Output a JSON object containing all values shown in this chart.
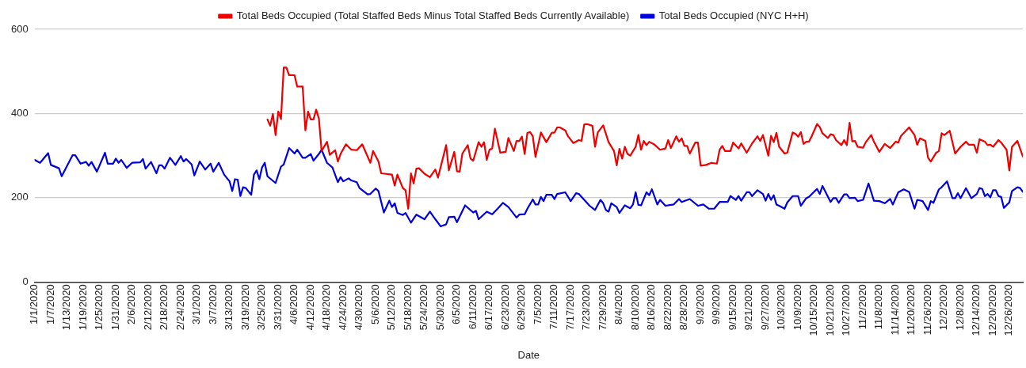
{
  "chart_data": {
    "type": "line",
    "xlabel": "Date",
    "legend": "top",
    "grid": "y",
    "marker": "none",
    "line_style": "solid",
    "xlim": [
      "2020-01-01",
      "2020-12-31"
    ],
    "ylim": [
      0,
      600
    ],
    "yticks": [
      0,
      200,
      400,
      600
    ],
    "xticks": [
      {
        "value": "2020-01-01",
        "label": "1/1/2020"
      },
      {
        "value": "2020-01-07",
        "label": "1/7/2020"
      },
      {
        "value": "2020-01-13",
        "label": "1/13/2020"
      },
      {
        "value": "2020-01-19",
        "label": "1/19/2020"
      },
      {
        "value": "2020-01-25",
        "label": "1/25/2020"
      },
      {
        "value": "2020-01-31",
        "label": "1/31/2020"
      },
      {
        "value": "2020-02-06",
        "label": "2/6/2020"
      },
      {
        "value": "2020-02-12",
        "label": "2/12/2020"
      },
      {
        "value": "2020-02-18",
        "label": "2/18/2020"
      },
      {
        "value": "2020-02-24",
        "label": "2/24/2020"
      },
      {
        "value": "2020-03-01",
        "label": "3/1/2020"
      },
      {
        "value": "2020-03-07",
        "label": "3/7/2020"
      },
      {
        "value": "2020-03-13",
        "label": "3/13/2020"
      },
      {
        "value": "2020-03-19",
        "label": "3/19/2020"
      },
      {
        "value": "2020-03-25",
        "label": "3/25/2020"
      },
      {
        "value": "2020-03-31",
        "label": "3/31/2020"
      },
      {
        "value": "2020-04-06",
        "label": "4/6/2020"
      },
      {
        "value": "2020-04-12",
        "label": "4/12/2020"
      },
      {
        "value": "2020-04-18",
        "label": "4/18/2020"
      },
      {
        "value": "2020-04-24",
        "label": "4/24/2020"
      },
      {
        "value": "2020-04-30",
        "label": "4/30/2020"
      },
      {
        "value": "2020-05-06",
        "label": "5/6/2020"
      },
      {
        "value": "2020-05-12",
        "label": "5/12/2020"
      },
      {
        "value": "2020-05-18",
        "label": "5/18/2020"
      },
      {
        "value": "2020-05-24",
        "label": "5/24/2020"
      },
      {
        "value": "2020-05-30",
        "label": "5/30/2020"
      },
      {
        "value": "2020-06-05",
        "label": "6/5/2020"
      },
      {
        "value": "2020-06-11",
        "label": "6/11/2020"
      },
      {
        "value": "2020-06-17",
        "label": "6/17/2020"
      },
      {
        "value": "2020-06-23",
        "label": "6/23/2020"
      },
      {
        "value": "2020-06-29",
        "label": "6/29/2020"
      },
      {
        "value": "2020-07-05",
        "label": "7/5/2020"
      },
      {
        "value": "2020-07-11",
        "label": "7/11/2020"
      },
      {
        "value": "2020-07-17",
        "label": "7/17/2020"
      },
      {
        "value": "2020-07-23",
        "label": "7/23/2020"
      },
      {
        "value": "2020-07-29",
        "label": "7/29/2020"
      },
      {
        "value": "2020-08-04",
        "label": "8/4/2020"
      },
      {
        "value": "2020-08-10",
        "label": "8/10/2020"
      },
      {
        "value": "2020-08-16",
        "label": "8/16/2020"
      },
      {
        "value": "2020-08-22",
        "label": "8/22/2020"
      },
      {
        "value": "2020-08-28",
        "label": "8/28/2020"
      },
      {
        "value": "2020-09-03",
        "label": "9/3/2020"
      },
      {
        "value": "2020-09-09",
        "label": "9/9/2020"
      },
      {
        "value": "2020-09-15",
        "label": "9/15/2020"
      },
      {
        "value": "2020-09-21",
        "label": "9/21/2020"
      },
      {
        "value": "2020-09-27",
        "label": "9/27/2020"
      },
      {
        "value": "2020-10-03",
        "label": "10/3/2020"
      },
      {
        "value": "2020-10-09",
        "label": "10/9/2020"
      },
      {
        "value": "2020-10-15",
        "label": "10/15/2020"
      },
      {
        "value": "2020-10-21",
        "label": "10/21/2020"
      },
      {
        "value": "2020-10-27",
        "label": "10/27/2020"
      },
      {
        "value": "2020-11-02",
        "label": "11/2/2020"
      },
      {
        "value": "2020-11-08",
        "label": "11/8/2020"
      },
      {
        "value": "2020-11-14",
        "label": "11/14/2020"
      },
      {
        "value": "2020-11-20",
        "label": "11/20/2020"
      },
      {
        "value": "2020-11-26",
        "label": "11/26/2020"
      },
      {
        "value": "2020-12-02",
        "label": "12/2/2020"
      },
      {
        "value": "2020-12-08",
        "label": "12/8/2020"
      },
      {
        "value": "2020-12-14",
        "label": "12/14/2020"
      },
      {
        "value": "2020-12-20",
        "label": "12/20/2020"
      },
      {
        "value": "2020-12-26",
        "label": "12/26/2020"
      }
    ],
    "series": [
      {
        "name": "Total Beds Occupied (Total Staffed Beds Minus Total Staffed Beds Currently Available)",
        "color": "#ee0000",
        "x": [
          "2020-03-27",
          "2020-03-28",
          "2020-03-29",
          "2020-03-30",
          "2020-03-31",
          "2020-04-01",
          "2020-04-02",
          "2020-04-03",
          "2020-04-04",
          "2020-04-06",
          "2020-04-07",
          "2020-04-09",
          "2020-04-10",
          "2020-04-11",
          "2020-04-12",
          "2020-04-13",
          "2020-04-14",
          "2020-04-15",
          "2020-04-16",
          "2020-04-18",
          "2020-04-19",
          "2020-04-21",
          "2020-04-22",
          "2020-04-23",
          "2020-04-25",
          "2020-04-27",
          "2020-04-29",
          "2020-05-01",
          "2020-05-04",
          "2020-05-05",
          "2020-05-07",
          "2020-05-08",
          "2020-05-12",
          "2020-05-13",
          "2020-05-14",
          "2020-05-16",
          "2020-05-17",
          "2020-05-18",
          "2020-05-19",
          "2020-05-20",
          "2020-05-21",
          "2020-05-22",
          "2020-05-24",
          "2020-05-26",
          "2020-05-28",
          "2020-05-29",
          "2020-06-01",
          "2020-06-02",
          "2020-06-04",
          "2020-06-05",
          "2020-06-06",
          "2020-06-07",
          "2020-06-09",
          "2020-06-10",
          "2020-06-11",
          "2020-06-13",
          "2020-06-14",
          "2020-06-15",
          "2020-06-16",
          "2020-06-17",
          "2020-06-18",
          "2020-06-19",
          "2020-06-21",
          "2020-06-23",
          "2020-06-24",
          "2020-06-26",
          "2020-06-27",
          "2020-06-28",
          "2020-06-29",
          "2020-06-30",
          "2020-07-01",
          "2020-07-02",
          "2020-07-03",
          "2020-07-04",
          "2020-07-06",
          "2020-07-08",
          "2020-07-10",
          "2020-07-11",
          "2020-07-12",
          "2020-07-13",
          "2020-07-15",
          "2020-07-16",
          "2020-07-18",
          "2020-07-20",
          "2020-07-21",
          "2020-07-22",
          "2020-07-23",
          "2020-07-25",
          "2020-07-26",
          "2020-07-27",
          "2020-07-29",
          "2020-07-31",
          "2020-08-02",
          "2020-08-03",
          "2020-08-04",
          "2020-08-05",
          "2020-08-06",
          "2020-08-07",
          "2020-08-08",
          "2020-08-10",
          "2020-08-11",
          "2020-08-12",
          "2020-08-13",
          "2020-08-14",
          "2020-08-15",
          "2020-08-17",
          "2020-08-19",
          "2020-08-21",
          "2020-08-22",
          "2020-08-23",
          "2020-08-25",
          "2020-08-26",
          "2020-08-27",
          "2020-08-28",
          "2020-08-29",
          "2020-08-30",
          "2020-09-01",
          "2020-09-02",
          "2020-09-03",
          "2020-09-05",
          "2020-09-07",
          "2020-09-09",
          "2020-09-10",
          "2020-09-11",
          "2020-09-12",
          "2020-09-14",
          "2020-09-15",
          "2020-09-17",
          "2020-09-18",
          "2020-09-20",
          "2020-09-22",
          "2020-09-24",
          "2020-09-25",
          "2020-09-26",
          "2020-09-28",
          "2020-09-29",
          "2020-09-30",
          "2020-10-01",
          "2020-10-02",
          "2020-10-04",
          "2020-10-05",
          "2020-10-07",
          "2020-10-08",
          "2020-10-09",
          "2020-10-10",
          "2020-10-11",
          "2020-10-12",
          "2020-10-13",
          "2020-10-14",
          "2020-10-16",
          "2020-10-17",
          "2020-10-18",
          "2020-10-20",
          "2020-10-21",
          "2020-10-22",
          "2020-10-23",
          "2020-10-25",
          "2020-10-26",
          "2020-10-27",
          "2020-10-28",
          "2020-10-29",
          "2020-10-30",
          "2020-10-31",
          "2020-11-02",
          "2020-11-03",
          "2020-11-05",
          "2020-11-06",
          "2020-11-08",
          "2020-11-10",
          "2020-11-12",
          "2020-11-14",
          "2020-11-15",
          "2020-11-16",
          "2020-11-19",
          "2020-11-21",
          "2020-11-22",
          "2020-11-23",
          "2020-11-25",
          "2020-11-26",
          "2020-11-27",
          "2020-11-29",
          "2020-11-30",
          "2020-12-01",
          "2020-12-02",
          "2020-12-04",
          "2020-12-06",
          "2020-12-08",
          "2020-12-10",
          "2020-12-11",
          "2020-12-13",
          "2020-12-14",
          "2020-12-15",
          "2020-12-17",
          "2020-12-18",
          "2020-12-19",
          "2020-12-20",
          "2020-12-22",
          "2020-12-23",
          "2020-12-25",
          "2020-12-26",
          "2020-12-27",
          "2020-12-29",
          "2020-12-31"
        ],
        "values": [
          386,
          371,
          399,
          349,
          405,
          387,
          509,
          509,
          491,
          491,
          464,
          464,
          360,
          405,
          386,
          386,
          409,
          388,
          311,
          333,
          302,
          313,
          286,
          304,
          327,
          314,
          313,
          327,
          283,
          311,
          286,
          258,
          255,
          229,
          255,
          223,
          218,
          174,
          258,
          234,
          269,
          270,
          257,
          249,
          267,
          248,
          325,
          265,
          309,
          263,
          262,
          305,
          325,
          293,
          288,
          332,
          321,
          332,
          290,
          314,
          317,
          364,
          307,
          309,
          342,
          311,
          335,
          335,
          345,
          304,
          354,
          356,
          346,
          297,
          355,
          332,
          354,
          355,
          367,
          367,
          360,
          346,
          330,
          337,
          335,
          374,
          375,
          371,
          321,
          355,
          372,
          332,
          311,
          277,
          316,
          293,
          321,
          304,
          300,
          321,
          349,
          314,
          335,
          325,
          333,
          326,
          314,
          317,
          337,
          318,
          346,
          333,
          341,
          323,
          323,
          305,
          331,
          331,
          276,
          278,
          283,
          281,
          314,
          323,
          311,
          311,
          331,
          317,
          329,
          307,
          329,
          346,
          335,
          349,
          300,
          347,
          332,
          354,
          321,
          305,
          307,
          355,
          352,
          345,
          356,
          328,
          333,
          333,
          346,
          375,
          368,
          353,
          342,
          351,
          349,
          337,
          325,
          337,
          325,
          378,
          334,
          335,
          321,
          319,
          332,
          349,
          333,
          309,
          328,
          318,
          333,
          331,
          347,
          367,
          349,
          326,
          341,
          335,
          295,
          286,
          307,
          311,
          353,
          349,
          359,
          305,
          321,
          333,
          326,
          326,
          307,
          339,
          333,
          325,
          326,
          321,
          337,
          331,
          314,
          265,
          321,
          335,
          298
        ]
      },
      {
        "name": "Total Beds Occupied (NYC H+H)",
        "color": "#0000dd",
        "x": [
          "2020-01-01",
          "2020-01-03",
          "2020-01-06",
          "2020-01-07",
          "2020-01-10",
          "2020-01-11",
          "2020-01-15",
          "2020-01-16",
          "2020-01-18",
          "2020-01-20",
          "2020-01-21",
          "2020-01-22",
          "2020-01-24",
          "2020-01-27",
          "2020-01-28",
          "2020-01-30",
          "2020-01-31",
          "2020-02-01",
          "2020-02-02",
          "2020-02-04",
          "2020-02-06",
          "2020-02-09",
          "2020-02-10",
          "2020-02-11",
          "2020-02-13",
          "2020-02-15",
          "2020-02-16",
          "2020-02-17",
          "2020-02-18",
          "2020-02-20",
          "2020-02-22",
          "2020-02-24",
          "2020-02-25",
          "2020-02-26",
          "2020-02-28",
          "2020-02-29",
          "2020-03-02",
          "2020-03-04",
          "2020-03-06",
          "2020-03-07",
          "2020-03-09",
          "2020-03-11",
          "2020-03-13",
          "2020-03-14",
          "2020-03-15",
          "2020-03-16",
          "2020-03-17",
          "2020-03-18",
          "2020-03-19",
          "2020-03-21",
          "2020-03-22",
          "2020-03-23",
          "2020-03-24",
          "2020-03-25",
          "2020-03-26",
          "2020-03-27",
          "2020-03-30",
          "2020-04-01",
          "2020-04-02",
          "2020-04-04",
          "2020-04-06",
          "2020-04-07",
          "2020-04-09",
          "2020-04-10",
          "2020-04-12",
          "2020-04-13",
          "2020-04-15",
          "2020-04-16",
          "2020-04-18",
          "2020-04-20",
          "2020-04-22",
          "2020-04-23",
          "2020-04-24",
          "2020-04-26",
          "2020-04-27",
          "2020-04-29",
          "2020-04-30",
          "2020-05-03",
          "2020-05-04",
          "2020-05-06",
          "2020-05-07",
          "2020-05-09",
          "2020-05-11",
          "2020-05-12",
          "2020-05-13",
          "2020-05-14",
          "2020-05-16",
          "2020-05-17",
          "2020-05-19",
          "2020-05-21",
          "2020-05-24",
          "2020-05-26",
          "2020-05-28",
          "2020-05-30",
          "2020-06-01",
          "2020-06-02",
          "2020-06-04",
          "2020-06-05",
          "2020-06-08",
          "2020-06-11",
          "2020-06-12",
          "2020-06-13",
          "2020-06-16",
          "2020-06-18",
          "2020-06-20",
          "2020-06-22",
          "2020-06-24",
          "2020-06-27",
          "2020-06-28",
          "2020-06-30",
          "2020-07-01",
          "2020-07-03",
          "2020-07-04",
          "2020-07-05",
          "2020-07-06",
          "2020-07-07",
          "2020-07-08",
          "2020-07-10",
          "2020-07-11",
          "2020-07-12",
          "2020-07-15",
          "2020-07-17",
          "2020-07-19",
          "2020-07-20",
          "2020-07-22",
          "2020-07-24",
          "2020-07-26",
          "2020-07-28",
          "2020-07-29",
          "2020-07-30",
          "2020-07-31",
          "2020-08-01",
          "2020-08-03",
          "2020-08-04",
          "2020-08-06",
          "2020-08-08",
          "2020-08-09",
          "2020-08-10",
          "2020-08-11",
          "2020-08-12",
          "2020-08-14",
          "2020-08-15",
          "2020-08-16",
          "2020-08-18",
          "2020-08-19",
          "2020-08-21",
          "2020-08-24",
          "2020-08-26",
          "2020-08-27",
          "2020-08-30",
          "2020-09-02",
          "2020-09-04",
          "2020-09-06",
          "2020-09-08",
          "2020-09-10",
          "2020-09-13",
          "2020-09-14",
          "2020-09-16",
          "2020-09-17",
          "2020-09-18",
          "2020-09-20",
          "2020-09-21",
          "2020-09-22",
          "2020-09-24",
          "2020-09-26",
          "2020-09-27",
          "2020-09-28",
          "2020-09-29",
          "2020-09-30",
          "2020-10-01",
          "2020-10-02",
          "2020-10-04",
          "2020-10-05",
          "2020-10-07",
          "2020-10-09",
          "2020-10-10",
          "2020-10-12",
          "2020-10-13",
          "2020-10-15",
          "2020-10-16",
          "2020-10-17",
          "2020-10-18",
          "2020-10-21",
          "2020-10-22",
          "2020-10-23",
          "2020-10-24",
          "2020-10-26",
          "2020-10-27",
          "2020-10-28",
          "2020-10-30",
          "2020-10-31",
          "2020-11-02",
          "2020-11-04",
          "2020-11-06",
          "2020-11-08",
          "2020-11-10",
          "2020-11-12",
          "2020-11-13",
          "2020-11-15",
          "2020-11-17",
          "2020-11-19",
          "2020-11-21",
          "2020-11-22",
          "2020-11-24",
          "2020-11-26",
          "2020-11-27",
          "2020-11-28",
          "2020-11-30",
          "2020-12-01",
          "2020-12-03",
          "2020-12-05",
          "2020-12-06",
          "2020-12-07",
          "2020-12-08",
          "2020-12-10",
          "2020-12-12",
          "2020-12-14",
          "2020-12-15",
          "2020-12-16",
          "2020-12-17",
          "2020-12-18",
          "2020-12-19",
          "2020-12-20",
          "2020-12-21",
          "2020-12-22",
          "2020-12-23",
          "2020-12-24",
          "2020-12-26",
          "2020-12-27",
          "2020-12-29",
          "2020-12-30",
          "2020-12-31"
        ],
        "values": [
          290,
          283,
          306,
          278,
          270,
          251,
          301,
          301,
          281,
          285,
          276,
          285,
          262,
          307,
          281,
          281,
          293,
          283,
          290,
          271,
          283,
          284,
          292,
          269,
          285,
          258,
          277,
          277,
          269,
          295,
          278,
          299,
          286,
          292,
          279,
          253,
          286,
          267,
          281,
          262,
          283,
          255,
          239,
          216,
          244,
          243,
          204,
          225,
          223,
          207,
          255,
          265,
          244,
          272,
          283,
          251,
          235,
          274,
          279,
          318,
          305,
          314,
          295,
          295,
          304,
          288,
          304,
          314,
          283,
          272,
          237,
          249,
          239,
          246,
          241,
          237,
          223,
          208,
          209,
          222,
          216,
          165,
          193,
          178,
          187,
          164,
          159,
          164,
          141,
          160,
          149,
          167,
          149,
          132,
          137,
          154,
          155,
          142,
          182,
          165,
          169,
          149,
          167,
          161,
          174,
          188,
          178,
          153,
          160,
          161,
          174,
          196,
          184,
          184,
          202,
          192,
          207,
          207,
          197,
          209,
          213,
          192,
          211,
          209,
          195,
          181,
          171,
          195,
          187,
          171,
          167,
          187,
          178,
          164,
          182,
          175,
          184,
          213,
          183,
          182,
          213,
          206,
          220,
          184,
          195,
          181,
          184,
          197,
          190,
          197,
          181,
          184,
          174,
          174,
          190,
          190,
          204,
          195,
          204,
          193,
          213,
          213,
          204,
          218,
          209,
          193,
          209,
          195,
          206,
          184,
          181,
          174,
          189,
          204,
          204,
          181,
          199,
          202,
          215,
          221,
          209,
          228,
          190,
          199,
          199,
          188,
          208,
          208,
          199,
          200,
          192,
          195,
          234,
          193,
          192,
          187,
          197,
          184,
          213,
          220,
          214,
          174,
          195,
          192,
          171,
          192,
          188,
          220,
          225,
          239,
          199,
          199,
          211,
          199,
          223,
          199,
          209,
          223,
          221,
          204,
          209,
          201,
          218,
          218,
          204,
          202,
          176,
          189,
          216,
          225,
          223,
          214
        ]
      }
    ]
  }
}
